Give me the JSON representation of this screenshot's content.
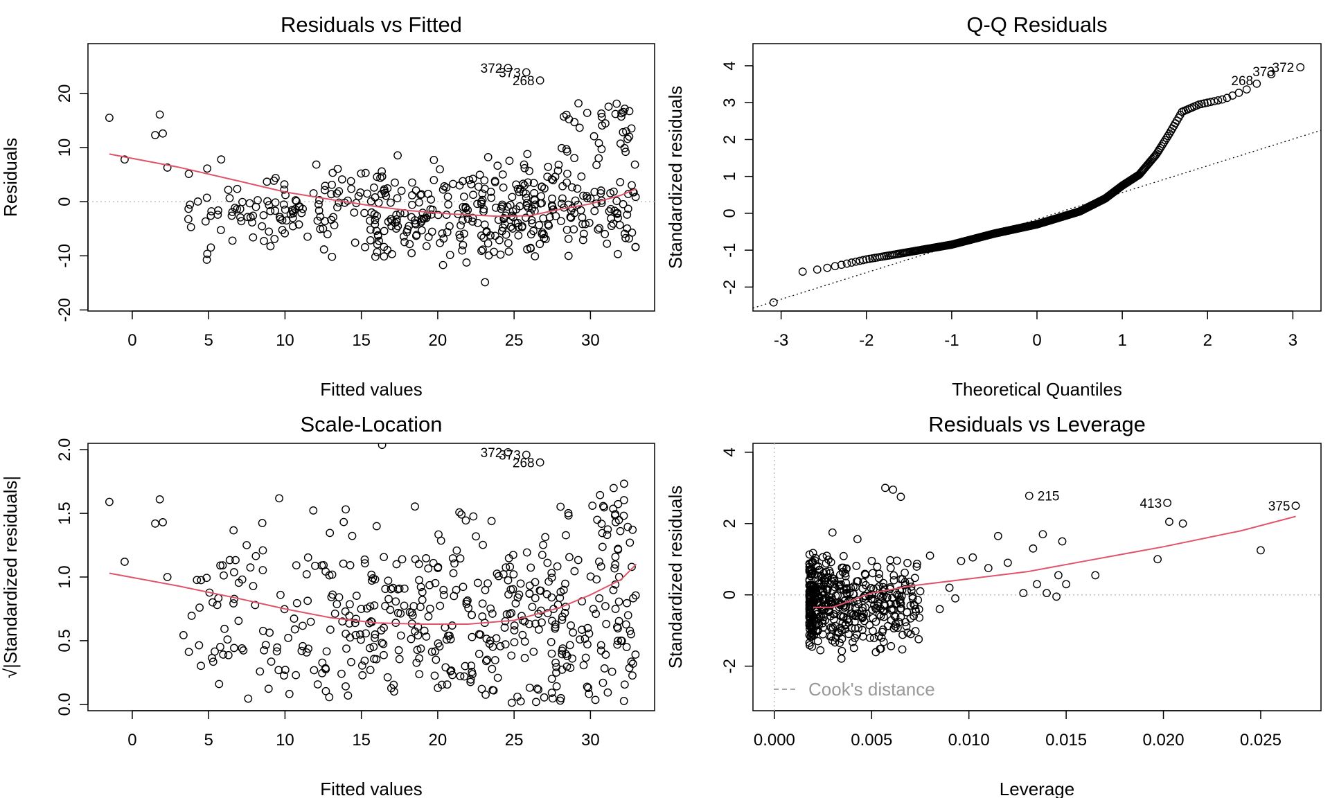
{
  "colors": {
    "point": "#000000",
    "smooth": "#DF536B",
    "reference": "#999999",
    "grid": "#BEBEBE"
  },
  "chart_data": [
    {
      "id": "rvf",
      "type": "scatter",
      "title": "Residuals vs Fitted",
      "xlabel": "Fitted values",
      "ylabel": "Residuals",
      "xlim": [
        -2.9,
        34.2
      ],
      "ylim": [
        -20.2,
        29.2
      ],
      "xticks": [
        0,
        5,
        10,
        15,
        20,
        25,
        30
      ],
      "xtick_labels": [
        "0",
        "5",
        "10",
        "15",
        "20",
        "25",
        "30"
      ],
      "yticks": [
        -20,
        -10,
        0,
        10,
        20
      ],
      "ytick_labels": [
        "-20",
        "-10",
        "0",
        "10",
        "20"
      ],
      "hline": 0,
      "smooth": [
        [
          -1.5,
          8.8
        ],
        [
          3,
          6.4
        ],
        [
          7,
          3.8
        ],
        [
          10,
          1.8
        ],
        [
          13,
          0.4
        ],
        [
          16,
          -0.9
        ],
        [
          18,
          -1.6
        ],
        [
          21,
          -2.3
        ],
        [
          24,
          -2.7
        ],
        [
          26,
          -2.6
        ],
        [
          28,
          -1.4
        ],
        [
          30,
          -0.4
        ],
        [
          32,
          1.2
        ],
        [
          33,
          2.4
        ]
      ],
      "labels": [
        {
          "text": "372",
          "x": 24.6,
          "y": 24.7
        },
        {
          "text": "373",
          "x": 25.8,
          "y": 23.9
        },
        {
          "text": "268",
          "x": 26.7,
          "y": 22.4
        }
      ],
      "highlight_points": [
        [
          24.6,
          24.7
        ],
        [
          25.8,
          23.9
        ],
        [
          26.7,
          22.4
        ]
      ],
      "random_points": {
        "count": 490,
        "x_range": [
          3,
          33
        ],
        "y_center": -2,
        "y_spread": 6
      }
    },
    {
      "id": "qq",
      "type": "scatter",
      "title": "Q-Q Residuals",
      "xlabel": "Theoretical Quantiles",
      "ylabel": "Standardized residuals",
      "xlim": [
        -3.33,
        3.33
      ],
      "ylim": [
        -2.65,
        4.6
      ],
      "xticks": [
        -3,
        -2,
        -1,
        0,
        1,
        2,
        3
      ],
      "xtick_labels": [
        "-3",
        "-2",
        "-1",
        "0",
        "1",
        "2",
        "3"
      ],
      "yticks": [
        -2,
        -1,
        0,
        1,
        2,
        3,
        4
      ],
      "ytick_labels": [
        "-2",
        "-1",
        "0",
        "1",
        "2",
        "3",
        "4"
      ],
      "ref_line": [
        [
          -3.33,
          -2.57
        ],
        [
          3.33,
          2.25
        ]
      ],
      "labels": [
        {
          "text": "268",
          "x": 2.6,
          "y": 3.6
        },
        {
          "text": "373",
          "x": 2.85,
          "y": 3.85
        },
        {
          "text": "372",
          "x": 3.08,
          "y": 3.96
        }
      ],
      "curve": [
        [
          -3.1,
          -2.45
        ],
        [
          -2.8,
          -1.6
        ],
        [
          -2.5,
          -1.5
        ],
        [
          -2,
          -1.25
        ],
        [
          -1.5,
          -1.05
        ],
        [
          -1,
          -0.85
        ],
        [
          -0.5,
          -0.55
        ],
        [
          0,
          -0.3
        ],
        [
          0.5,
          0.05
        ],
        [
          0.8,
          0.4
        ],
        [
          1,
          0.75
        ],
        [
          1.2,
          1.05
        ],
        [
          1.4,
          1.6
        ],
        [
          1.55,
          2.15
        ],
        [
          1.7,
          2.75
        ],
        [
          1.9,
          2.95
        ],
        [
          2.2,
          3.1
        ],
        [
          2.5,
          3.4
        ],
        [
          2.8,
          3.85
        ],
        [
          3.08,
          3.96
        ]
      ],
      "point_count": 506
    },
    {
      "id": "sl",
      "type": "scatter",
      "title": "Scale-Location",
      "xlabel": "Fitted values",
      "ylabel": "√|Standardized residuals|",
      "xlim": [
        -2.9,
        34.2
      ],
      "ylim": [
        -0.05,
        2.05
      ],
      "xticks": [
        0,
        5,
        10,
        15,
        20,
        25,
        30
      ],
      "xtick_labels": [
        "0",
        "5",
        "10",
        "15",
        "20",
        "25",
        "30"
      ],
      "yticks": [
        0.0,
        0.5,
        1.0,
        1.5,
        2.0
      ],
      "ytick_labels": [
        "0.0",
        "0.5",
        "1.0",
        "1.5",
        "2.0"
      ],
      "smooth": [
        [
          -1.5,
          1.03
        ],
        [
          3,
          0.93
        ],
        [
          7,
          0.83
        ],
        [
          10,
          0.75
        ],
        [
          13,
          0.68
        ],
        [
          16,
          0.64
        ],
        [
          19,
          0.63
        ],
        [
          22,
          0.63
        ],
        [
          25,
          0.66
        ],
        [
          28,
          0.76
        ],
        [
          30,
          0.86
        ],
        [
          32,
          0.98
        ],
        [
          33,
          1.1
        ]
      ],
      "labels": [
        {
          "text": "372",
          "x": 24.6,
          "y": 1.98
        },
        {
          "text": "373",
          "x": 25.8,
          "y": 1.96
        },
        {
          "text": "268",
          "x": 26.7,
          "y": 1.9
        }
      ],
      "highlight_points": [
        [
          24.6,
          1.98
        ],
        [
          25.8,
          1.96
        ],
        [
          26.7,
          1.9
        ]
      ],
      "random_points": {
        "count": 490,
        "x_range": [
          3,
          33
        ],
        "y_center": 0.7,
        "y_spread": 0.38
      }
    },
    {
      "id": "rvl",
      "type": "scatter",
      "title": "Residuals vs Leverage",
      "xlabel": "Leverage",
      "ylabel": "Standardized residuals",
      "xlim": [
        -0.0011,
        0.0281
      ],
      "ylim": [
        -3.25,
        4.25
      ],
      "xticks": [
        0.0,
        0.005,
        0.01,
        0.015,
        0.02,
        0.025
      ],
      "xtick_labels": [
        "0.000",
        "0.005",
        "0.010",
        "0.015",
        "0.020",
        "0.025"
      ],
      "yticks": [
        -2,
        0,
        2,
        4
      ],
      "ytick_labels": [
        "-2",
        "0",
        "2",
        "4"
      ],
      "hline": 0,
      "vline": 0,
      "smooth": [
        [
          0.002,
          -0.35
        ],
        [
          0.003,
          -0.35
        ],
        [
          0.004,
          -0.15
        ],
        [
          0.005,
          0.05
        ],
        [
          0.007,
          0.25
        ],
        [
          0.01,
          0.45
        ],
        [
          0.013,
          0.65
        ],
        [
          0.016,
          0.95
        ],
        [
          0.02,
          1.35
        ],
        [
          0.024,
          1.8
        ],
        [
          0.0268,
          2.2
        ]
      ],
      "labels": [
        {
          "text": "215",
          "x": 0.0131,
          "y": 2.78
        },
        {
          "text": "413",
          "x": 0.0202,
          "y": 2.58
        },
        {
          "text": "375",
          "x": 0.0268,
          "y": 2.5
        }
      ],
      "legend": "Cook's distance",
      "legend_position": "bottom-left",
      "extra_points": [
        [
          0.0096,
          0.95
        ],
        [
          0.0102,
          1.05
        ],
        [
          0.011,
          0.75
        ],
        [
          0.0115,
          1.65
        ],
        [
          0.012,
          0.9
        ],
        [
          0.0128,
          0.05
        ],
        [
          0.0133,
          1.3
        ],
        [
          0.0135,
          0.3
        ],
        [
          0.0138,
          1.7
        ],
        [
          0.014,
          0.05
        ],
        [
          0.0145,
          -0.05
        ],
        [
          0.0146,
          0.55
        ],
        [
          0.0148,
          1.5
        ],
        [
          0.015,
          0.3
        ],
        [
          0.0165,
          0.55
        ],
        [
          0.0197,
          1.0
        ],
        [
          0.0203,
          2.05
        ],
        [
          0.021,
          2.0
        ],
        [
          0.025,
          1.25
        ],
        [
          0.0131,
          2.78
        ],
        [
          0.0202,
          2.58
        ],
        [
          0.0268,
          2.5
        ],
        [
          0.0085,
          -0.4
        ],
        [
          0.009,
          0.2
        ],
        [
          0.0093,
          -0.1
        ],
        [
          0.008,
          1.1
        ],
        [
          0.0075,
          0.1
        ],
        [
          0.007,
          -0.3
        ],
        [
          0.0065,
          2.75
        ],
        [
          0.0061,
          2.95
        ],
        [
          0.0057,
          3.0
        ]
      ],
      "random_points": {
        "count": 470,
        "x_range": [
          0.0018,
          0.0075
        ],
        "y_center": -0.2,
        "y_spread": 0.8
      }
    }
  ]
}
